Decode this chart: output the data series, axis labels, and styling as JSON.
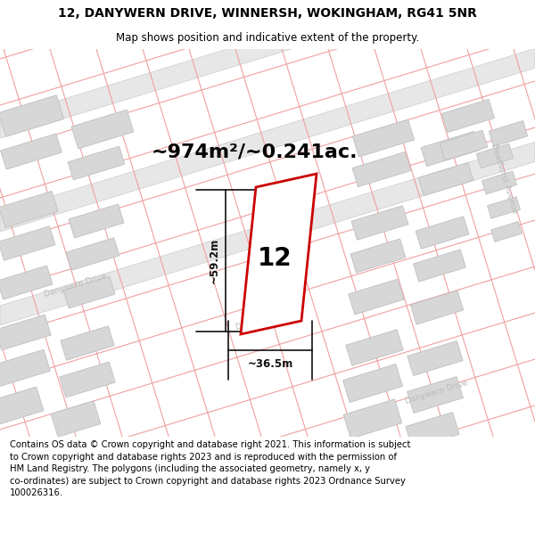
{
  "title_line1": "12, DANYWERN DRIVE, WINNERSH, WOKINGHAM, RG41 5NR",
  "title_line2": "Map shows position and indicative extent of the property.",
  "area_text": "~974m²/~0.241ac.",
  "width_label": "~36.5m",
  "height_label": "~59.2m",
  "number_label": "12",
  "footer_text": "Contains OS data © Crown copyright and database right 2021. This information is subject\nto Crown copyright and database rights 2023 and is reproduced with the permission of\nHM Land Registry. The polygons (including the associated geometry, namely x, y\nco-ordinates) are subject to Crown copyright and database rights 2023 Ordnance Survey\n100026316.",
  "map_bg": "#f8f7f7",
  "road_fill": "#e8e7e7",
  "building_fill": "#d8d7d7",
  "building_stroke": "#c0bfbf",
  "red_color": "#cc0000",
  "pink_color": "#f0a0a0",
  "dim_color": "#111111",
  "road_label_color": "#bbbbbb",
  "title_fontsize": 10,
  "subtitle_fontsize": 8.5,
  "area_fontsize": 16,
  "num_fontsize": 20,
  "dim_fontsize": 8.5,
  "road_label_fontsize": 6.5,
  "footer_fontsize": 7.2
}
